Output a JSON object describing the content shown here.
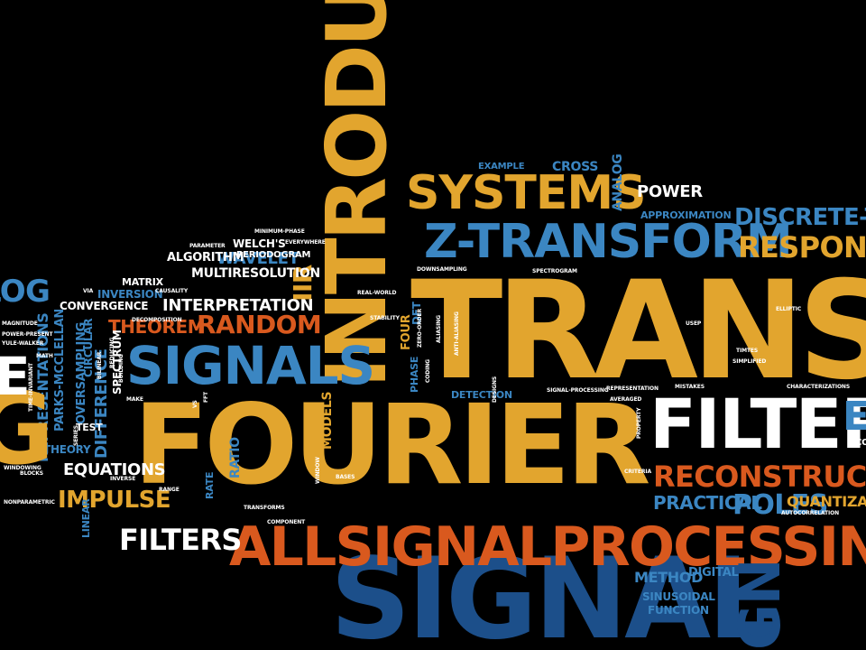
{
  "words": {
    "transform": "TRANSFO",
    "fourier": "FOURIER",
    "introduction": "INTRODUCTI",
    "signal": "SIGNAL",
    "allsignal": "ALLSIGNALPROCESSING.CO",
    "ztransform": "Z-TRANSFORM",
    "systems": "SYSTEMS",
    "filter": "FILTER",
    "signals": "SIGNALS",
    "reconstruction": "RECONSTRUCTION",
    "response": "RESPONSE",
    "discretetime": "DISCRETE-TIM",
    "random": "RANDOM",
    "filters": "FILTERS",
    "impulse": "IMPULSE",
    "poles": "POLES",
    "practical": "PRACTICAL",
    "quantization": "QUANTIZATION",
    "power": "POWER",
    "interpretation": "INTERPRETATION",
    "iir": "IIR",
    "theorem": "THEOREM",
    "wavelet": "WAVELET",
    "algorithm": "ALGORITHM",
    "multiresolution": "MULTIRESOLUTION",
    "periodogram": "PERIODOGRAM",
    "welchs": "WELCH'S",
    "matrix": "MATRIX",
    "inversion": "INVERSION",
    "convergence": "CONVERGENCE",
    "parksmcclellan": "PARKS-MCCLELLAN",
    "representations": "REPRESENTATIONS",
    "equations": "EQUATIONS",
    "difference": "DIFFERENCE",
    "spectrum": "SPECTRUM",
    "oversampling": "OVERSAMPLING",
    "circular": "CIRCULAR",
    "theory": "THEORY",
    "test": "TEST",
    "method": "METHOD",
    "sinusoidal": "SINUSOIDAL",
    "function": "FUNCTION",
    "digital": "DIGITAL",
    "analog": "ANALOG",
    "cross": "CROSS",
    "example": "EXAMPLE",
    "approximation": "APPROXIMATION",
    "detection": "DETECTION",
    "models": "MODELS",
    "ratio": "RATIO",
    "four": "FOUR",
    "phase": "PHASE",
    "dft": "DFT",
    "linear": "LINEAR",
    "rate": "RATE",
    "g_left": "G",
    "log_left": "LOG",
    "e_left": "E",
    "gn_bottom": "GN",
    "ex_right": "EX",
    "minimum_phase": "MINIMUM-PHASE",
    "everywhere": "EVERYWHERE",
    "spectrogram": "SPECTROGRAM",
    "downsampling": "DOWNSAMPLING",
    "causality": "CAUSALITY",
    "decomposition": "DECOMPOSITION",
    "stability": "STABILITY",
    "zero_order": "ZERO-ORDER",
    "aliasing": "ALIASING",
    "real_world": "REAL-WORLD",
    "signal_processing": "SIGNAL-PROCESSING",
    "representation": "REPRESENTATION",
    "averaged": "AVERAGED",
    "mistakes": "MISTAKES",
    "characterizations": "CHARACTERIZATIONS",
    "windowing": "WINDOWING",
    "nonparametric": "NONPARAMETRIC",
    "transforms": "TRANSFORMS",
    "component": "COMPONENT",
    "window": "WINDOW",
    "bases": "BASES",
    "coding": "CODING",
    "designs": "DESIGNS",
    "anti_aliasing": "ANTI-ALIASING",
    "elliptic": "ELLIPTIC",
    "usep": "USEP",
    "times": "TIMTES",
    "simplified": "SIMPLIFIED",
    "criteria": "CRITERIA",
    "property": "PROPERTY",
    "magnitude": "MAGNITUDE",
    "yule_walker": "YULE-WALKER",
    "power_present": "POWER-PRESENT",
    "time_invariant": "TIME-INVARIANT",
    "blocks": "BLOCKS",
    "bilinear": "BILINEAR",
    "reducing": "REDUCING",
    "building": "BUILDING",
    "series": "SERIES",
    "inverse": "INVERSE",
    "range": "RANGE",
    "make": "MAKE",
    "fft": "FFT",
    "vs": "VS",
    "via": "VIA",
    "math": "MATH",
    "parameter": "PARAMETER",
    "autocorrelation": "AUTOCORRELATION",
    "sampling_tiny": "CO"
  }
}
